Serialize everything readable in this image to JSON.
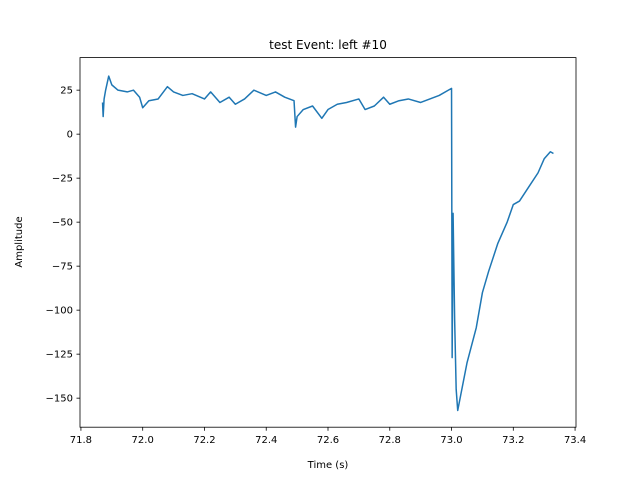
{
  "chart_data": {
    "type": "line",
    "title": "test Event: left #10",
    "x_label": "Time (s)",
    "y_label": "Amplitude",
    "x": [
      71.87,
      71.872,
      71.875,
      71.88,
      71.89,
      71.9,
      71.92,
      71.95,
      71.97,
      71.99,
      72.0,
      72.02,
      72.05,
      72.08,
      72.1,
      72.13,
      72.16,
      72.2,
      72.22,
      72.25,
      72.28,
      72.3,
      72.33,
      72.36,
      72.4,
      72.43,
      72.46,
      72.49,
      72.495,
      72.5,
      72.52,
      72.55,
      72.58,
      72.6,
      72.63,
      72.66,
      72.7,
      72.72,
      72.75,
      72.78,
      72.8,
      72.83,
      72.86,
      72.9,
      72.93,
      72.96,
      72.99,
      73.0,
      73.002,
      73.005,
      73.01,
      73.015,
      73.02,
      73.03,
      73.05,
      73.08,
      73.1,
      73.12,
      73.15,
      73.18,
      73.2,
      73.22,
      73.25,
      73.28,
      73.3,
      73.32,
      73.33
    ],
    "series": [
      {
        "color": "#1f77b4",
        "values": [
          18,
          10,
          20,
          25,
          33,
          28,
          25,
          24,
          25,
          21,
          15,
          19,
          20,
          27,
          24,
          22,
          23,
          20,
          24,
          18,
          21,
          17,
          20,
          25,
          22,
          24,
          21,
          19,
          4,
          10,
          14,
          16,
          9,
          14,
          17,
          18,
          20,
          14,
          16,
          21,
          17,
          19,
          20,
          18,
          20,
          22,
          25,
          26,
          -127,
          -45,
          -105,
          -145,
          -157,
          -148,
          -130,
          -110,
          -90,
          -78,
          -62,
          -50,
          -40,
          -38,
          -30,
          -22,
          -14,
          -10,
          -11
        ]
      }
    ],
    "xlim": [
      71.797,
      73.403
    ],
    "xticks": [
      71.8,
      {
        "value": 72.0,
        "label": "72.0"
      },
      72.2,
      72.4,
      72.6,
      72.8,
      {
        "value": 73.0,
        "label": "73.0"
      },
      73.2,
      73.4
    ],
    "ylim": [
      -166.5,
      43.5
    ],
    "yticks": [
      {
        "value": -150,
        "label": "−150"
      },
      {
        "value": -125,
        "label": "−125"
      },
      {
        "value": -100,
        "label": "−100"
      },
      {
        "value": -75,
        "label": "−75"
      },
      {
        "value": -50,
        "label": "−50"
      },
      {
        "value": -25,
        "label": "−25"
      },
      0,
      25
    ],
    "grid": false
  }
}
